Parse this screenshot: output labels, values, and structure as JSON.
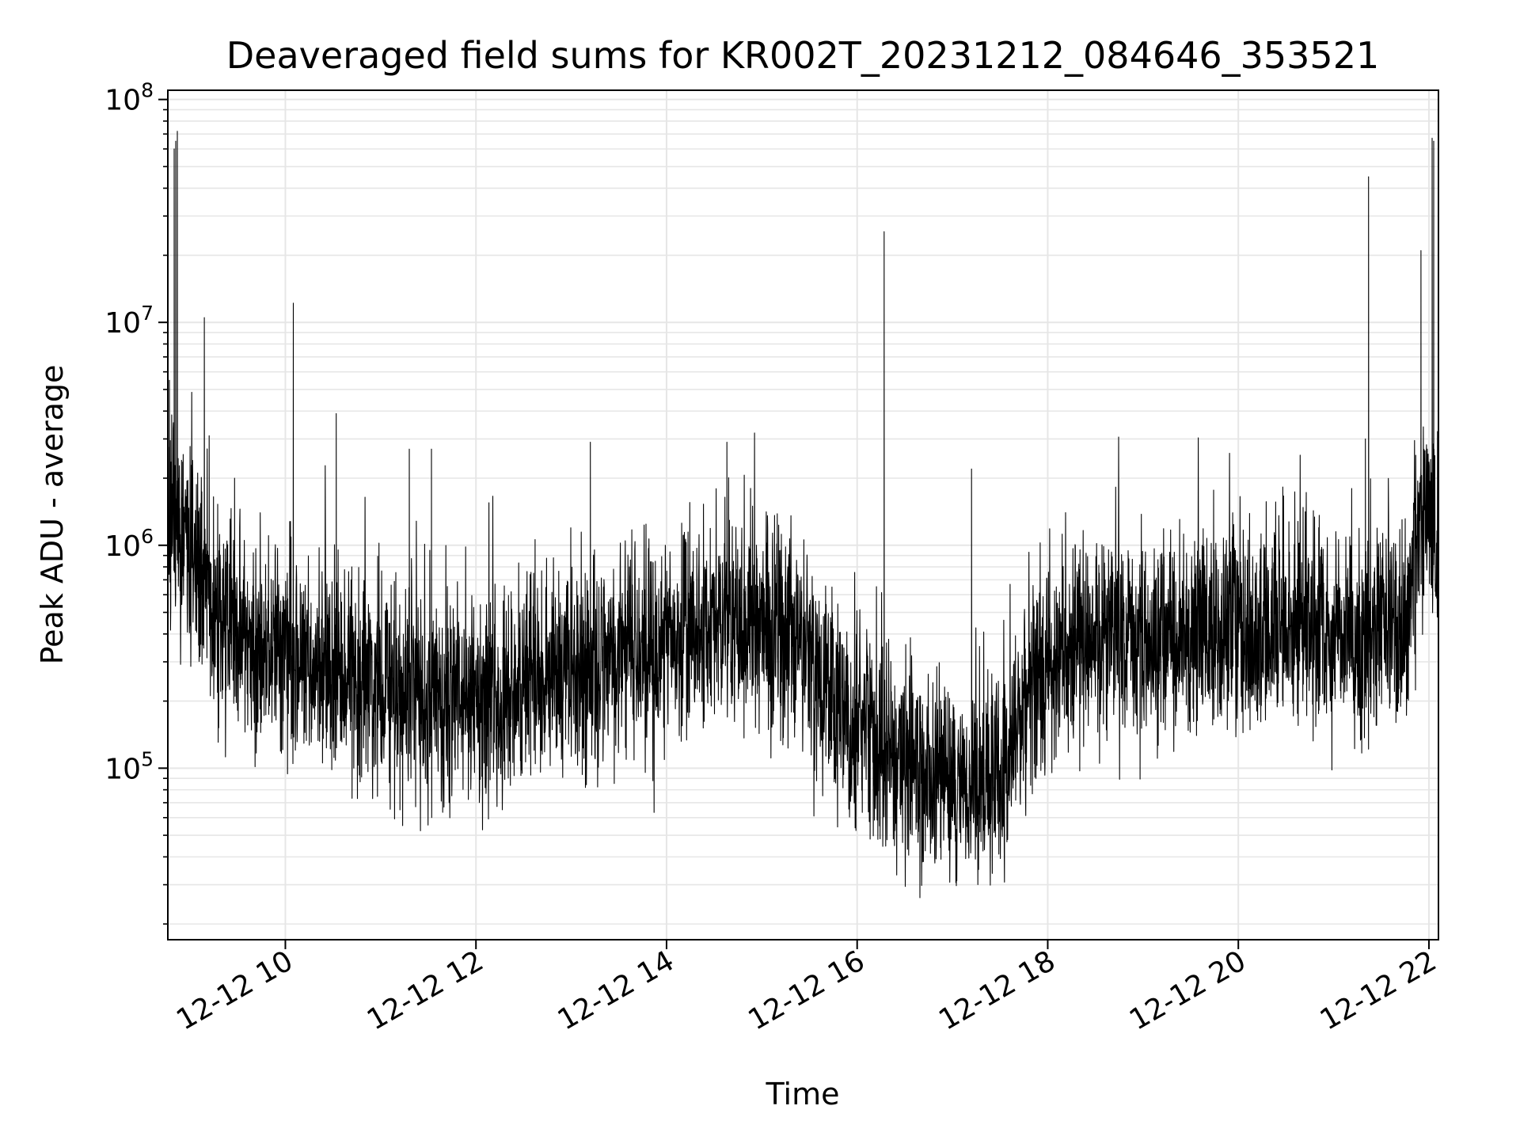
{
  "chart_data": {
    "type": "line",
    "title": "Deaveraged field sums for KR002T_20231212_084646_353521",
    "xlabel": "Time",
    "ylabel": "Peak ADU - average",
    "y_scale": "log",
    "ylim": [
      17000,
      110000000
    ],
    "xlim": [
      "2023-12-12 08:46",
      "2023-12-12 22:06"
    ],
    "grid": true,
    "legend": "none",
    "line_color": "#000000",
    "grid_color": "#e6e6e6",
    "x_ticks": [
      {
        "value": "2023-12-12 10:00",
        "label": "12-12 10"
      },
      {
        "value": "2023-12-12 12:00",
        "label": "12-12 12"
      },
      {
        "value": "2023-12-12 14:00",
        "label": "12-12 14"
      },
      {
        "value": "2023-12-12 16:00",
        "label": "12-12 16"
      },
      {
        "value": "2023-12-12 18:00",
        "label": "12-12 18"
      },
      {
        "value": "2023-12-12 20:00",
        "label": "12-12 20"
      },
      {
        "value": "2023-12-12 22:00",
        "label": "12-12 22"
      }
    ],
    "y_ticks": [
      {
        "value": 100000,
        "base": "10",
        "exp": "5"
      },
      {
        "value": 1000000,
        "base": "10",
        "exp": "6"
      },
      {
        "value": 10000000,
        "base": "10",
        "exp": "7"
      },
      {
        "value": 100000000,
        "base": "10",
        "exp": "8"
      }
    ],
    "series": [
      {
        "baseline": [
          [
            "2023-12-12 08:46",
            1200000
          ],
          [
            "2023-12-12 08:55",
            1100000
          ],
          [
            "2023-12-12 09:05",
            800000
          ],
          [
            "2023-12-12 09:20",
            450000
          ],
          [
            "2023-12-12 09:40",
            350000
          ],
          [
            "2023-12-12 10:00",
            320000
          ],
          [
            "2023-12-12 10:30",
            280000
          ],
          [
            "2023-12-12 11:00",
            220000
          ],
          [
            "2023-12-12 11:30",
            200000
          ],
          [
            "2023-12-12 12:00",
            200000
          ],
          [
            "2023-12-12 12:30",
            230000
          ],
          [
            "2023-12-12 13:00",
            270000
          ],
          [
            "2023-12-12 13:30",
            300000
          ],
          [
            "2023-12-12 14:00",
            360000
          ],
          [
            "2023-12-12 14:30",
            450000
          ],
          [
            "2023-12-12 15:00",
            480000
          ],
          [
            "2023-12-12 15:20",
            380000
          ],
          [
            "2023-12-12 15:40",
            220000
          ],
          [
            "2023-12-12 16:00",
            150000
          ],
          [
            "2023-12-12 16:30",
            110000
          ],
          [
            "2023-12-12 17:00",
            85000
          ],
          [
            "2023-12-12 17:30",
            90000
          ],
          [
            "2023-12-12 17:35",
            95000
          ],
          [
            "2023-12-12 17:45",
            200000
          ],
          [
            "2023-12-12 18:00",
            330000
          ],
          [
            "2023-12-12 18:30",
            380000
          ],
          [
            "2023-12-12 19:00",
            350000
          ],
          [
            "2023-12-12 19:30",
            380000
          ],
          [
            "2023-12-12 20:00",
            420000
          ],
          [
            "2023-12-12 20:30",
            430000
          ],
          [
            "2023-12-12 21:00",
            420000
          ],
          [
            "2023-12-12 21:30",
            380000
          ],
          [
            "2023-12-12 21:45",
            420000
          ],
          [
            "2023-12-12 21:55",
            1400000
          ],
          [
            "2023-12-12 22:06",
            1000000
          ]
        ],
        "spikes": [
          [
            "2023-12-12 08:47",
            5500000
          ],
          [
            "2023-12-12 08:50",
            60000000
          ],
          [
            "2023-12-12 08:51",
            65000000
          ],
          [
            "2023-12-12 08:52",
            72000000
          ],
          [
            "2023-12-12 08:53",
            2000000
          ],
          [
            "2023-12-12 09:09",
            10500000
          ],
          [
            "2023-12-12 09:12",
            3100000
          ],
          [
            "2023-12-12 09:28",
            2000000
          ],
          [
            "2023-12-12 10:05",
            12200000
          ],
          [
            "2023-12-12 10:32",
            3900000
          ],
          [
            "2023-12-12 11:18",
            2700000
          ],
          [
            "2023-12-12 11:32",
            2700000
          ],
          [
            "2023-12-12 13:12",
            2900000
          ],
          [
            "2023-12-12 14:38",
            2900000
          ],
          [
            "2023-12-12 16:17",
            25500000
          ],
          [
            "2023-12-12 17:12",
            2200000
          ],
          [
            "2023-12-12 21:20",
            3000000
          ],
          [
            "2023-12-12 21:22",
            45000000
          ],
          [
            "2023-12-12 21:55",
            21000000
          ],
          [
            "2023-12-12 22:02",
            67000000
          ],
          [
            "2023-12-12 22:03",
            65000000
          ]
        ]
      }
    ]
  }
}
